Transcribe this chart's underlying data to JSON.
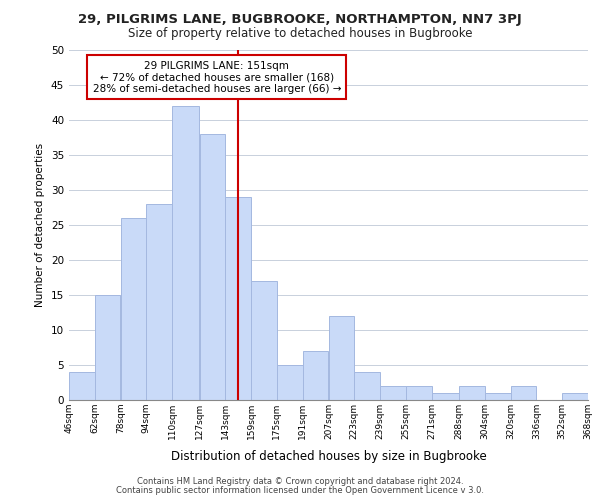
{
  "title": "29, PILGRIMS LANE, BUGBROOKE, NORTHAMPTON, NN7 3PJ",
  "subtitle": "Size of property relative to detached houses in Bugbrooke",
  "xlabel": "Distribution of detached houses by size in Bugbrooke",
  "ylabel": "Number of detached properties",
  "bin_edges": [
    46,
    62,
    78,
    94,
    110,
    127,
    143,
    159,
    175,
    191,
    207,
    223,
    239,
    255,
    271,
    288,
    304,
    320,
    336,
    352,
    368
  ],
  "bin_labels": [
    "46sqm",
    "62sqm",
    "78sqm",
    "94sqm",
    "110sqm",
    "127sqm",
    "143sqm",
    "159sqm",
    "175sqm",
    "191sqm",
    "207sqm",
    "223sqm",
    "239sqm",
    "255sqm",
    "271sqm",
    "288sqm",
    "304sqm",
    "320sqm",
    "336sqm",
    "352sqm",
    "368sqm"
  ],
  "counts": [
    4,
    15,
    26,
    28,
    42,
    38,
    29,
    17,
    5,
    7,
    12,
    4,
    2,
    2,
    1,
    2,
    1,
    2,
    0,
    1
  ],
  "bar_color": "#c9daf8",
  "bar_edge_color": "#a4b8e0",
  "property_line_x": 151,
  "property_line_color": "#cc0000",
  "ylim": [
    0,
    50
  ],
  "yticks": [
    0,
    5,
    10,
    15,
    20,
    25,
    30,
    35,
    40,
    45,
    50
  ],
  "annotation_title": "29 PILGRIMS LANE: 151sqm",
  "annotation_line1": "← 72% of detached houses are smaller (168)",
  "annotation_line2": "28% of semi-detached houses are larger (66) →",
  "annotation_box_color": "#ffffff",
  "annotation_box_edge": "#cc0000",
  "footer1": "Contains HM Land Registry data © Crown copyright and database right 2024.",
  "footer2": "Contains public sector information licensed under the Open Government Licence v 3.0.",
  "background_color": "#ffffff",
  "grid_color": "#c8d0dc"
}
